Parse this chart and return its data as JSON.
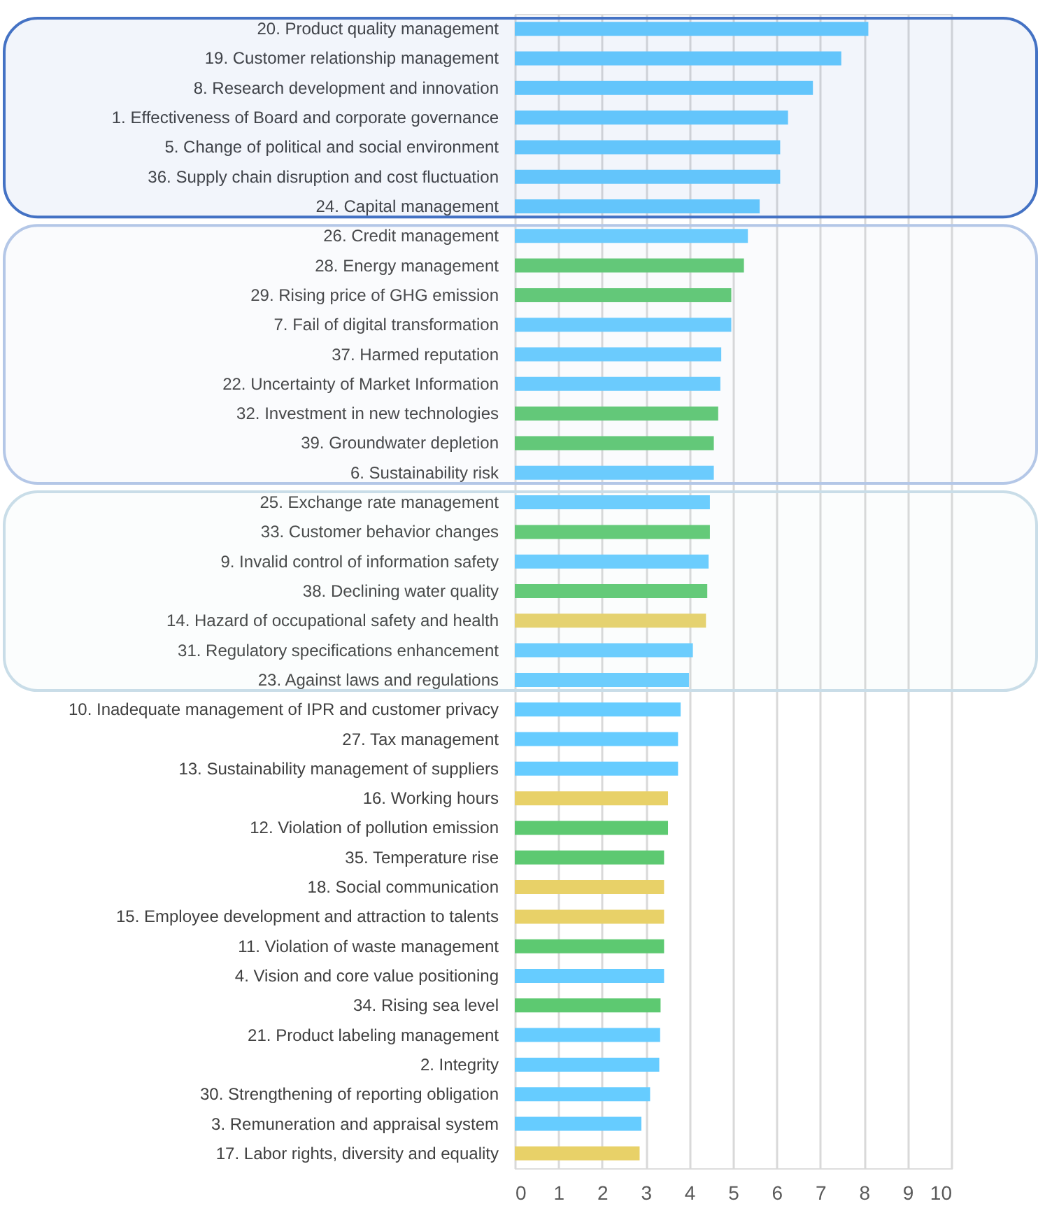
{
  "chart_data": {
    "type": "bar",
    "orientation": "horizontal",
    "categories": [
      "20. Product quality management",
      "19. Customer relationship management",
      "8.    Research development and innovation",
      "1.    Effectiveness of Board and corporate governance",
      "5.    Change of political and social environment",
      "36. Supply chain disruption and cost fluctuation",
      "24. Capital management",
      "26. Credit management",
      "28. Energy management",
      "29. Rising price of GHG emission",
      "7.    Fail of digital transformation",
      "37. Harmed reputation",
      "22. Uncertainty of Market Information",
      "32. Investment in new technologies",
      "39. Groundwater depletion",
      "6.    Sustainability risk",
      "25. Exchange rate management",
      "33. Customer behavior changes",
      "9.    Invalid control of information safety",
      "38. Declining water quality",
      "14. Hazard of occupational safety and health",
      "31. Regulatory specifications enhancement",
      "23. Against laws and regulations",
      "10. Inadequate management of IPR and customer privacy",
      "27. Tax management",
      "13. Sustainability management of suppliers",
      "16. Working hours",
      "12. Violation of pollution emission",
      "35. Temperature rise",
      "18. Social communication",
      "15. Employee development and attraction to talents",
      "11. Violation of waste management",
      "4.    Vision and core value positioning",
      "34. Rising sea level",
      "21. Product labeling management",
      "2.    Integrity",
      "30. Strengthening of reporting obligation",
      "3.    Remuneration and appraisal system",
      "17. Labor rights, diversity and equality"
    ],
    "values": [
      8.1,
      7.48,
      6.83,
      6.26,
      6.08,
      6.08,
      5.61,
      5.34,
      5.25,
      4.96,
      4.96,
      4.73,
      4.71,
      4.66,
      4.56,
      4.56,
      4.47,
      4.47,
      4.44,
      4.41,
      4.38,
      4.08,
      3.99,
      3.8,
      3.74,
      3.74,
      3.51,
      3.51,
      3.42,
      3.42,
      3.42,
      3.42,
      3.42,
      3.34,
      3.33,
      3.31,
      3.1,
      2.9,
      2.86
    ],
    "colors": [
      "#66ccff",
      "#66ccff",
      "#66ccff",
      "#66ccff",
      "#66ccff",
      "#66ccff",
      "#66ccff",
      "#66ccff",
      "#5dc971",
      "#5dc971",
      "#66ccff",
      "#66ccff",
      "#66ccff",
      "#5dc971",
      "#5dc971",
      "#66ccff",
      "#66ccff",
      "#5dc971",
      "#66ccff",
      "#5dc971",
      "#e8d168",
      "#66ccff",
      "#66ccff",
      "#66ccff",
      "#66ccff",
      "#66ccff",
      "#e8d168",
      "#5dc971",
      "#5dc971",
      "#e8d168",
      "#e8d168",
      "#5dc971",
      "#66ccff",
      "#5dc971",
      "#66ccff",
      "#66ccff",
      "#66ccff",
      "#66ccff",
      "#e8d168"
    ],
    "xlim": [
      0,
      10
    ],
    "xticks": [
      0,
      1,
      2,
      3,
      4,
      5,
      6,
      7,
      8,
      9,
      10
    ],
    "grid": "x",
    "bands": [
      {
        "axis": "y",
        "from": "20. Product quality management",
        "to": "24. Capital management",
        "color": "#4472c4"
      },
      {
        "axis": "y",
        "from": "26. Credit management",
        "to": "6.    Sustainability risk",
        "color": "#b4c7e7"
      },
      {
        "axis": "y",
        "from": "25. Exchange rate management",
        "to": "23. Against laws and regulations",
        "color": "#c9dde8"
      }
    ]
  }
}
